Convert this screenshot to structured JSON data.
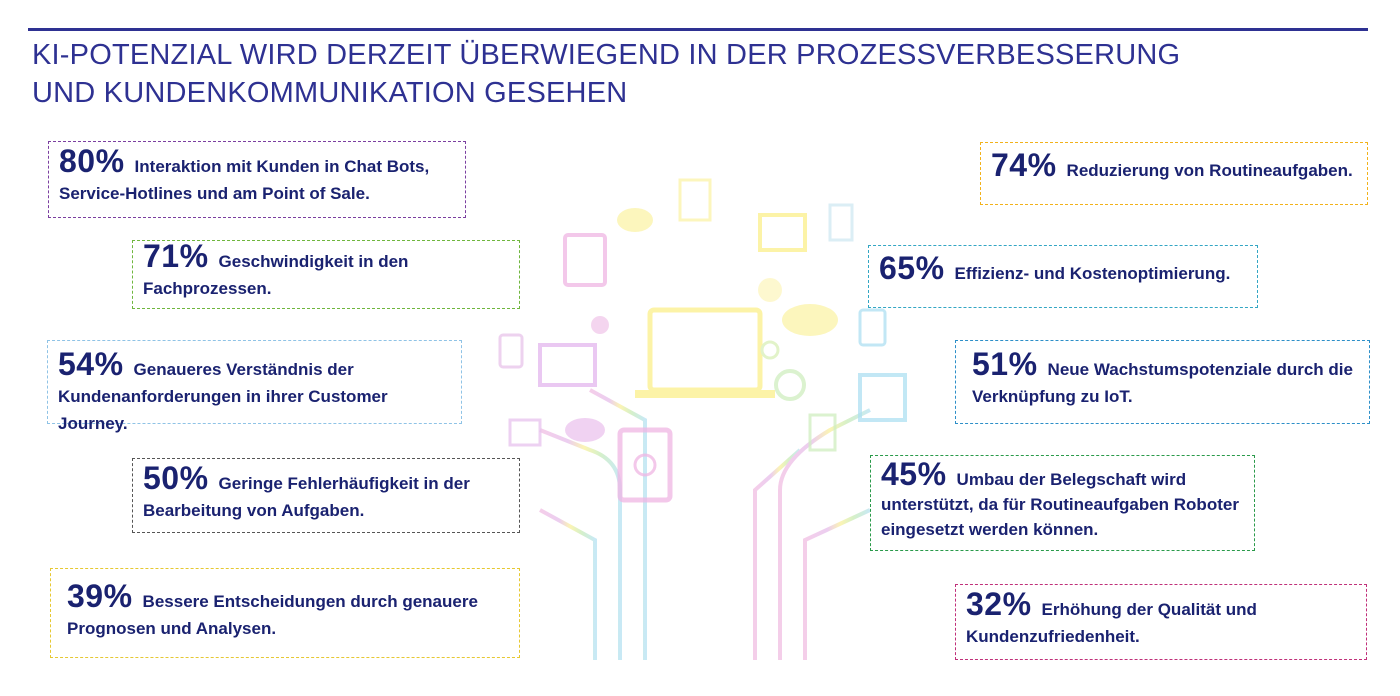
{
  "title": "KI-POTENZIAL WIRD DERZEIT ÜBERWIEGEND IN DER PROZESSVERBESSERUNG UND KUNDENKOMMUNIKATION GESEHEN",
  "chart_data": {
    "type": "table",
    "title": "KI-POTENZIAL WIRD DERZEIT ÜBERWIEGEND IN DER PROZESSVERBESSERUNG UND KUNDENKOMMUNIKATION GESEHEN",
    "items": [
      {
        "id": "i80",
        "percent": "80%",
        "value": 80,
        "label": "Interaktion mit Kunden in Chat Bots, Service-Hotlines und am Point of Sale.",
        "color": "#7b3fa0"
      },
      {
        "id": "i74",
        "percent": "74%",
        "value": 74,
        "label": "Reduzierung von Routineaufgaben.",
        "color": "#f2b21b"
      },
      {
        "id": "i71",
        "percent": "71%",
        "value": 71,
        "label": "Geschwindigkeit in den Fachprozessen.",
        "color": "#6fb63e"
      },
      {
        "id": "i65",
        "percent": "65%",
        "value": 65,
        "label": "Effizienz- und Kostenoptimierung.",
        "color": "#33a6c4"
      },
      {
        "id": "i54",
        "percent": "54%",
        "value": 54,
        "label": "Genaueres Verständnis der Kundenanforderungen in ihrer Customer Journey.",
        "color": "#8fc3e6"
      },
      {
        "id": "i51",
        "percent": "51%",
        "value": 51,
        "label": "Neue Wachstumspotenziale durch die Verknüpfung zu IoT.",
        "color": "#2d8fc8"
      },
      {
        "id": "i50",
        "percent": "50%",
        "value": 50,
        "label": "Geringe Fehlerhäufigkeit in der Bearbeitung von Aufgaben.",
        "color": "#555555"
      },
      {
        "id": "i45",
        "percent": "45%",
        "value": 45,
        "label": "Umbau der Belegschaft wird unterstützt, da für Routineaufgaben Roboter eingesetzt werden können.",
        "color": "#2a9a4a"
      },
      {
        "id": "i39",
        "percent": "39%",
        "value": 39,
        "label": "Bessere Entscheidungen durch genauere Prognosen und Analysen.",
        "color": "#e6c832"
      },
      {
        "id": "i32",
        "percent": "32%",
        "value": 32,
        "label": "Erhöhung der Qualität und Kundenzufriedenheit.",
        "color": "#c0307a"
      }
    ]
  }
}
